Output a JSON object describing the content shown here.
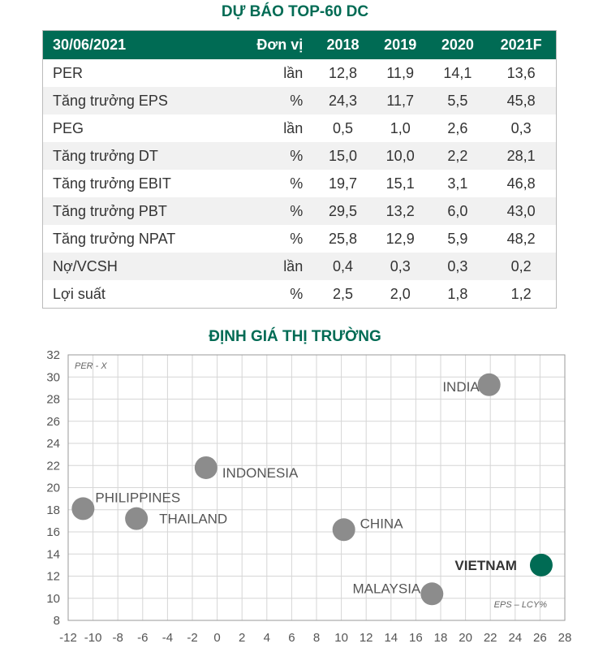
{
  "table": {
    "title": "DỰ BÁO TOP-60 DC",
    "headers": [
      "30/06/2021",
      "Đơn vị",
      "2018",
      "2019",
      "2020",
      "2021F"
    ],
    "rows": [
      [
        "PER",
        "lần",
        "12,8",
        "11,9",
        "14,1",
        "13,6"
      ],
      [
        "Tăng trưởng EPS",
        "%",
        "24,3",
        "11,7",
        "5,5",
        "45,8"
      ],
      [
        "PEG",
        "lần",
        "0,5",
        "1,0",
        "2,6",
        "0,3"
      ],
      [
        "Tăng trưởng DT",
        "%",
        "15,0",
        "10,0",
        "2,2",
        "28,1"
      ],
      [
        "Tăng trưởng  EBIT",
        "%",
        "19,7",
        "15,1",
        "3,1",
        "46,8"
      ],
      [
        "Tăng trưởng PBT",
        "%",
        "29,5",
        "13,2",
        "6,0",
        "43,0"
      ],
      [
        "Tăng trưởng NPAT",
        "%",
        "25,8",
        "12,9",
        "5,9",
        "48,2"
      ],
      [
        "Nợ/VCSH",
        "lần",
        "0,4",
        "0,3",
        "0,3",
        "0,2"
      ],
      [
        "Lợi suất",
        "%",
        "2,5",
        "2,0",
        "1,8",
        "1,2"
      ]
    ]
  },
  "chart_data": {
    "type": "scatter",
    "title": "ĐỊNH GIÁ THỊ TRƯỜNG",
    "xlabel": "EPS – LCY%",
    "ylabel": "PER - X",
    "xlim": [
      -12,
      28
    ],
    "ylim": [
      8,
      32
    ],
    "xticks": [
      -12,
      -10,
      -8,
      -6,
      -4,
      -2,
      0,
      2,
      4,
      6,
      8,
      10,
      12,
      14,
      16,
      18,
      20,
      22,
      24,
      26,
      28
    ],
    "yticks": [
      8,
      10,
      12,
      14,
      16,
      18,
      20,
      22,
      24,
      26,
      28,
      30,
      32
    ],
    "grid": true,
    "points": [
      {
        "label": "INDIA",
        "x": 21.9,
        "y": 29.3,
        "color": "#8c8c8c"
      },
      {
        "label": "INDONESIA",
        "x": -0.9,
        "y": 21.8,
        "color": "#8c8c8c"
      },
      {
        "label": "PHILIPPINES",
        "x": -10.8,
        "y": 18.1,
        "color": "#8c8c8c"
      },
      {
        "label": "THAILAND",
        "x": -6.5,
        "y": 17.2,
        "color": "#8c8c8c"
      },
      {
        "label": "CHINA",
        "x": 10.2,
        "y": 16.2,
        "color": "#8c8c8c"
      },
      {
        "label": "VIETNAM",
        "x": 26.1,
        "y": 13.0,
        "color": "#006b54"
      },
      {
        "label": "MALAYSIA",
        "x": 17.3,
        "y": 10.4,
        "color": "#8c8c8c"
      }
    ]
  }
}
